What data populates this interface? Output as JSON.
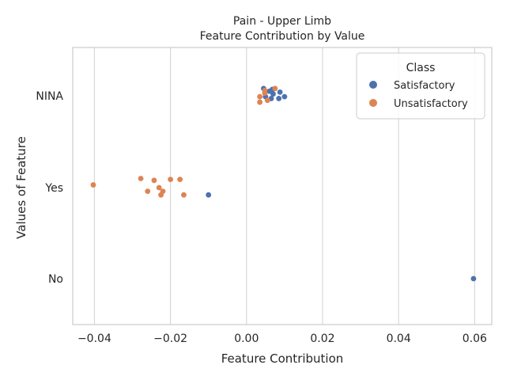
{
  "chart_data": {
    "type": "scatter",
    "title": "Pain - Upper Limb",
    "subtitle": "Feature Contribution by Value",
    "xlabel": "Feature Contribution",
    "ylabel": "Values of Feature",
    "xlim": [
      -0.0457,
      0.0645
    ],
    "x_ticks": [
      -0.04,
      -0.02,
      0.0,
      0.02,
      0.04,
      0.06
    ],
    "x_tick_labels": [
      "−0.04",
      "−0.02",
      "0.00",
      "0.02",
      "0.04",
      "0.06"
    ],
    "categories": [
      "NINA",
      "Yes",
      "No"
    ],
    "grid": "vertical",
    "legend": {
      "title": "Class",
      "position": "top-right"
    },
    "series": [
      {
        "name": "Satisfactory",
        "color": "#4c72b0",
        "points": [
          {
            "x": 0.0045,
            "y": "NINA",
            "jitter": -0.08
          },
          {
            "x": 0.006,
            "y": "NINA",
            "jitter": -0.05
          },
          {
            "x": 0.0068,
            "y": "NINA",
            "jitter": -0.07
          },
          {
            "x": 0.0088,
            "y": "NINA",
            "jitter": -0.04
          },
          {
            "x": 0.007,
            "y": "NINA",
            "jitter": -0.02
          },
          {
            "x": 0.005,
            "y": "NINA",
            "jitter": 0.01
          },
          {
            "x": 0.0065,
            "y": "NINA",
            "jitter": 0.03
          },
          {
            "x": 0.0085,
            "y": "NINA",
            "jitter": 0.03
          },
          {
            "x": 0.01,
            "y": "NINA",
            "jitter": 0.01
          },
          {
            "x": -0.01,
            "y": "Yes",
            "jitter": 0.08
          },
          {
            "x": 0.0597,
            "y": "No",
            "jitter": 0.0
          }
        ]
      },
      {
        "name": "Unsatisfactory",
        "color": "#dd8452",
        "points": [
          {
            "x": 0.0048,
            "y": "NINA",
            "jitter": -0.06
          },
          {
            "x": 0.0075,
            "y": "NINA",
            "jitter": -0.08
          },
          {
            "x": 0.0048,
            "y": "NINA",
            "jitter": -0.03
          },
          {
            "x": 0.0035,
            "y": "NINA",
            "jitter": 0.01
          },
          {
            "x": 0.0055,
            "y": "NINA",
            "jitter": 0.05
          },
          {
            "x": 0.0035,
            "y": "NINA",
            "jitter": 0.07
          },
          {
            "x": -0.0403,
            "y": "Yes",
            "jitter": -0.03
          },
          {
            "x": -0.0278,
            "y": "Yes",
            "jitter": -0.1
          },
          {
            "x": -0.0243,
            "y": "Yes",
            "jitter": -0.08
          },
          {
            "x": -0.02,
            "y": "Yes",
            "jitter": -0.09
          },
          {
            "x": -0.0175,
            "y": "Yes",
            "jitter": -0.09
          },
          {
            "x": -0.023,
            "y": "Yes",
            "jitter": 0.0
          },
          {
            "x": -0.026,
            "y": "Yes",
            "jitter": 0.04
          },
          {
            "x": -0.022,
            "y": "Yes",
            "jitter": 0.04
          },
          {
            "x": -0.0225,
            "y": "Yes",
            "jitter": 0.08
          },
          {
            "x": -0.0165,
            "y": "Yes",
            "jitter": 0.08
          }
        ]
      }
    ]
  }
}
